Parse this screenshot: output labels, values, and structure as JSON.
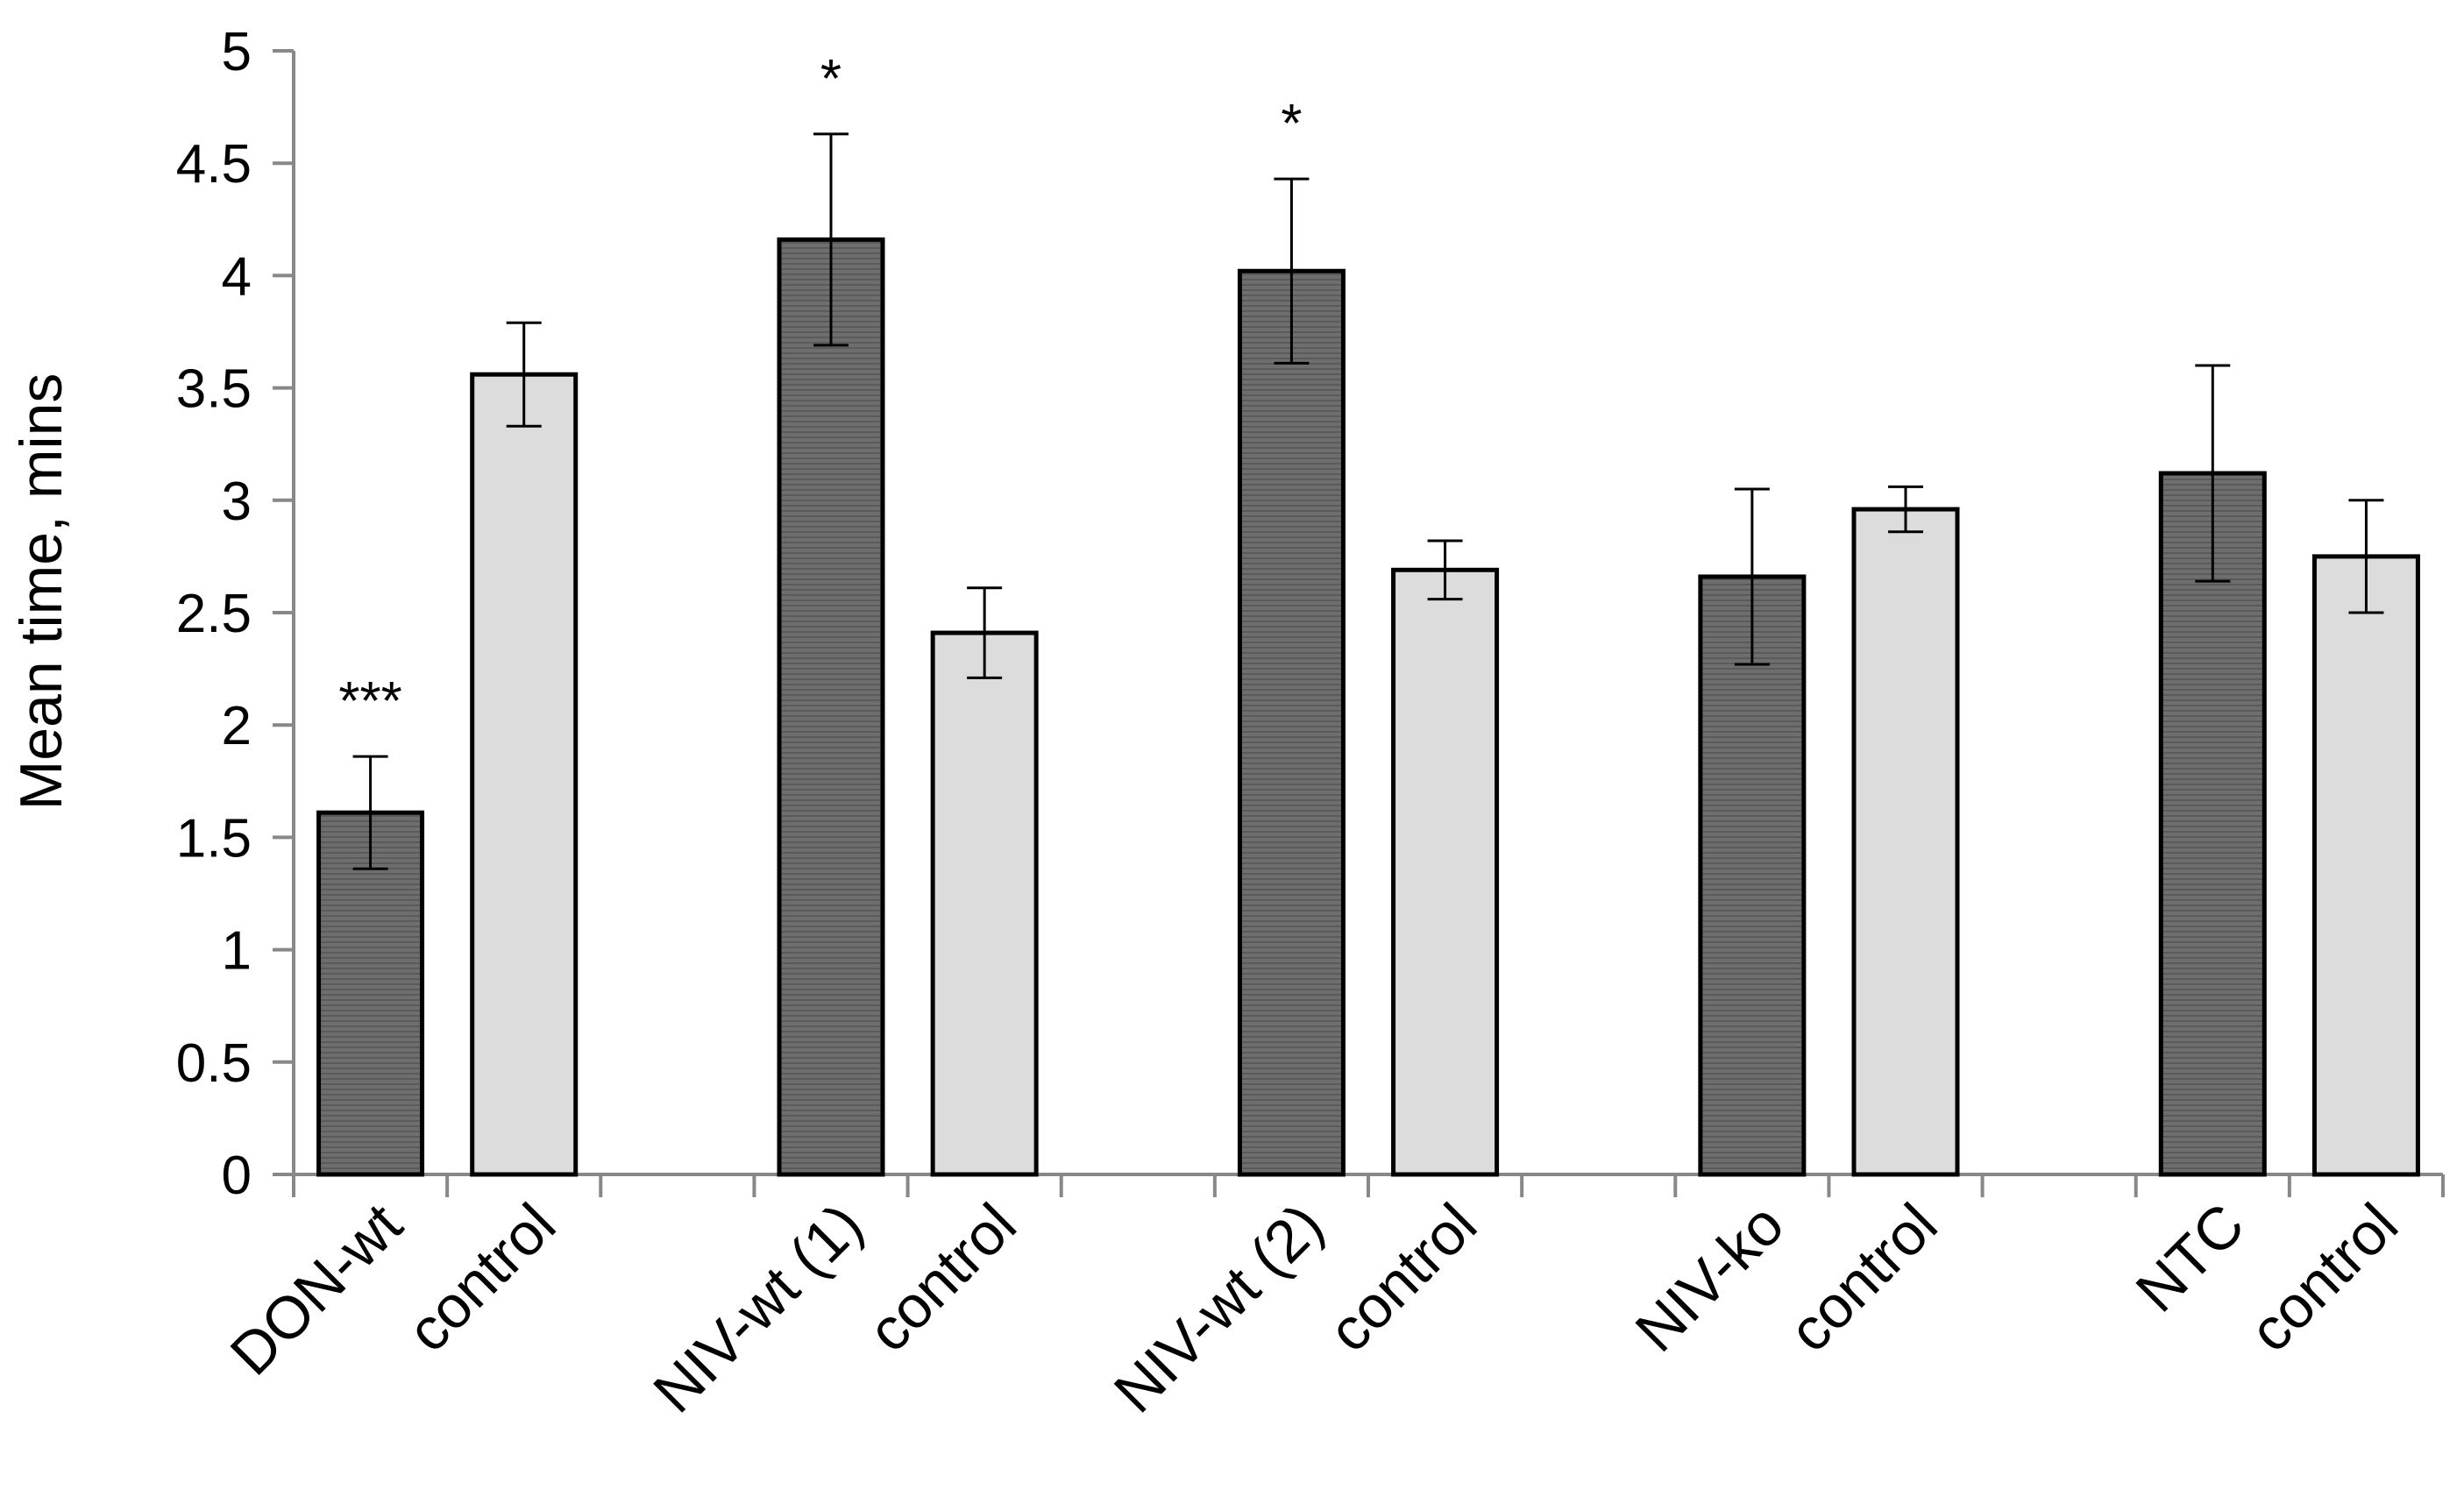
{
  "chart_data": {
    "type": "bar",
    "title": "",
    "xlabel": "",
    "ylabel": "Mean time, mins",
    "ylim": [
      0,
      5
    ],
    "yticks": [
      "0",
      "0.5",
      "1",
      "1.5",
      "2",
      "2.5",
      "3",
      "3.5",
      "4",
      "4.5",
      "5"
    ],
    "grid": false,
    "legend": "none",
    "colors": {
      "treatment": "#6e6e6e",
      "control": "#dcdcdc",
      "stroke": "#000000",
      "axis": "#888888"
    },
    "categories": [
      "DON-wt",
      "control",
      "",
      "NIV-wt (1)",
      "control",
      "",
      "NIV-wt (2)",
      "control",
      "",
      "NIV-ko",
      "control",
      "",
      "NTC",
      "control"
    ],
    "bars": [
      {
        "label": "DON-wt",
        "kind": "treatment",
        "value": 1.61,
        "error": 0.25,
        "sig": "***"
      },
      {
        "label": "control",
        "kind": "control",
        "value": 3.56,
        "error": 0.23,
        "sig": ""
      },
      {
        "label": "",
        "kind": "gap"
      },
      {
        "label": "NIV-wt (1)",
        "kind": "treatment",
        "value": 4.16,
        "error": 0.47,
        "sig": "*"
      },
      {
        "label": "control",
        "kind": "control",
        "value": 2.41,
        "error": 0.2,
        "sig": ""
      },
      {
        "label": "",
        "kind": "gap"
      },
      {
        "label": "NIV-wt (2)",
        "kind": "treatment",
        "value": 4.02,
        "error": 0.41,
        "sig": "*"
      },
      {
        "label": "control",
        "kind": "control",
        "value": 2.69,
        "error": 0.13,
        "sig": ""
      },
      {
        "label": "",
        "kind": "gap"
      },
      {
        "label": "NIV-ko",
        "kind": "treatment",
        "value": 2.66,
        "error": 0.39,
        "sig": ""
      },
      {
        "label": "control",
        "kind": "control",
        "value": 2.96,
        "error": 0.1,
        "sig": ""
      },
      {
        "label": "",
        "kind": "gap"
      },
      {
        "label": "NTC",
        "kind": "treatment",
        "value": 3.12,
        "error": 0.48,
        "sig": ""
      },
      {
        "label": "control",
        "kind": "control",
        "value": 2.75,
        "error": 0.25,
        "sig": ""
      }
    ]
  }
}
